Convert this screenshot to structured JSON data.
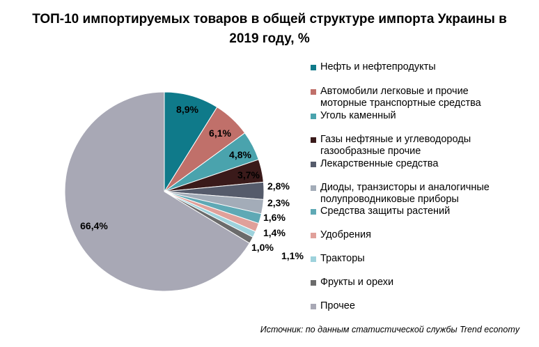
{
  "chart_data": {
    "type": "pie",
    "title_lines": [
      "ТОП-10 импортируемых товаров в общей структуре импорта Украины в",
      "2019 году, %"
    ],
    "slices": [
      {
        "label_lines": [
          "Нефть и нефтепродукты"
        ],
        "value": 8.9,
        "value_label": "8,9%",
        "color": "#0f7a8a"
      },
      {
        "label_lines": [
          "Автомобили легковые и прочие",
          "моторные транспортные средства"
        ],
        "value": 6.1,
        "value_label": "6,1%",
        "color": "#c0706a"
      },
      {
        "label_lines": [
          "Уголь каменный"
        ],
        "value": 4.8,
        "value_label": "4,8%",
        "color": "#4aa3ad"
      },
      {
        "label_lines": [
          "Газы нефтяные и углеводороды",
          "газообразные прочие"
        ],
        "value": 3.7,
        "value_label": "3,7%",
        "color": "#3a1a1a"
      },
      {
        "label_lines": [
          "Лекарственные средства"
        ],
        "value": 2.8,
        "value_label": "2,8%",
        "color": "#555b6b"
      },
      {
        "label_lines": [
          "Диоды, транзисторы и аналогичные",
          "полупроводниковые  приборы"
        ],
        "value": 2.3,
        "value_label": "2,3%",
        "color": "#a3acb8"
      },
      {
        "label_lines": [
          "Средства защиты растений"
        ],
        "value": 1.6,
        "value_label": "1,6%",
        "color": "#5fa9b5"
      },
      {
        "label_lines": [
          "Удобрения"
        ],
        "value": 1.4,
        "value_label": "1,4%",
        "color": "#e0a09a"
      },
      {
        "label_lines": [
          "Тракторы"
        ],
        "value": 1.0,
        "value_label": "1,0%",
        "color": "#9ed2dc"
      },
      {
        "label_lines": [
          "Фрукты и орехи"
        ],
        "value": 1.1,
        "value_label": "1,1%",
        "color": "#6b6b6b"
      },
      {
        "label_lines": [
          "Прочее"
        ],
        "value": 66.4,
        "value_label": "66,4%",
        "color": "#a8a8b5"
      }
    ],
    "legend_position": "right"
  },
  "source": "Источник: по данным статистической службы Trend economy"
}
